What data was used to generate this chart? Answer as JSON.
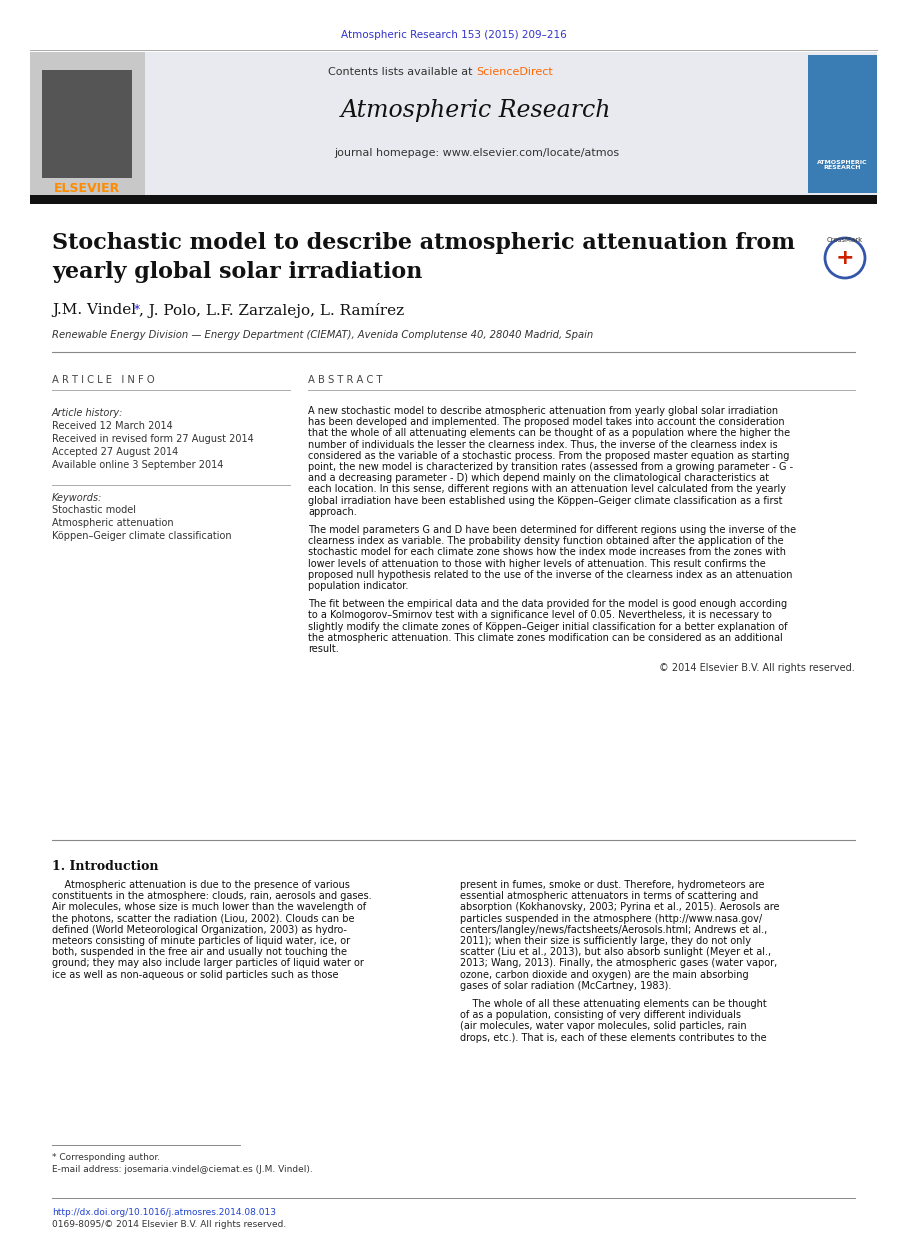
{
  "page_bg": "#ffffff",
  "top_citation": "Atmospheric Research 153 (2015) 209–216",
  "top_citation_color": "#3333cc",
  "contents_text": "Contents lists available at ",
  "sciencedirect_text": "ScienceDirect",
  "sciencedirect_color": "#ff6600",
  "journal_title": "Atmospheric Research",
  "journal_homepage": "journal homepage: www.elsevier.com/locate/atmos",
  "elsevier_color": "#ff8c00",
  "elsevier_text": "ELSEVIER",
  "article_title_line1": "Stochastic model to describe atmospheric attenuation from",
  "article_title_line2": "yearly global solar irradiation",
  "affiliation": "Renewable Energy Division — Energy Department (CIEMAT), Avenida Complutense 40, 28040 Madrid, Spain",
  "article_info_header": "A R T I C L E   I N F O",
  "abstract_header": "A B S T R A C T",
  "article_history_label": "Article history:",
  "received": "Received 12 March 2014",
  "received_revised": "Received in revised form 27 August 2014",
  "accepted": "Accepted 27 August 2014",
  "available_online": "Available online 3 September 2014",
  "keywords_label": "Keywords:",
  "keywords": [
    "Stochastic model",
    "Atmospheric attenuation",
    "Köppen–Geiger climate classification"
  ],
  "abstract_paragraph1": "A new stochastic model to describe atmospheric attenuation from yearly global solar irradiation\nhas been developed and implemented. The proposed model takes into account the consideration\nthat the whole of all attenuating elements can be thought of as a population where the higher the\nnumber of individuals the lesser the clearness index. Thus, the inverse of the clearness index is\nconsidered as the variable of a stochastic process. From the proposed master equation as starting\npoint, the new model is characterized by transition rates (assessed from a growing parameter - G -\nand a decreasing parameter - D) which depend mainly on the climatological characteristics at\neach location. In this sense, different regions with an attenuation level calculated from the yearly\nglobal irradiation have been established using the Köppen–Geiger climate classification as a first\napproach.",
  "abstract_paragraph2": "The model parameters G and D have been determined for different regions using the inverse of the\nclearness index as variable. The probability density function obtained after the application of the\nstochastic model for each climate zone shows how the index mode increases from the zones with\nlower levels of attenuation to those with higher levels of attenuation. This result confirms the\nproposed null hypothesis related to the use of the inverse of the clearness index as an attenuation\npopulation indicator.",
  "abstract_paragraph3": "The fit between the empirical data and the data provided for the model is good enough according\nto a Kolmogorov–Smirnov test with a significance level of 0.05. Nevertheless, it is necessary to\nslightly modify the climate zones of Köppen–Geiger initial classification for a better explanation of\nthe atmospheric attenuation. This climate zones modification can be considered as an additional\nresult.",
  "copyright": "© 2014 Elsevier B.V. All rights reserved.",
  "intro_header": "1. Introduction",
  "intro_p1_lines": [
    "    Atmospheric attenuation is due to the presence of various",
    "constituents in the atmosphere: clouds, rain, aerosols and gases.",
    "Air molecules, whose size is much lower than the wavelength of",
    "the photons, scatter the radiation (Liou, 2002). Clouds can be",
    "defined (World Meteorological Organization, 2003) as hydro-",
    "meteors consisting of minute particles of liquid water, ice, or",
    "both, suspended in the free air and usually not touching the",
    "ground; they may also include larger particles of liquid water or",
    "ice as well as non-aqueous or solid particles such as those"
  ],
  "intro_p2_lines": [
    "present in fumes, smoke or dust. Therefore, hydrometeors are",
    "essential atmospheric attenuators in terms of scattering and",
    "absorption (Kokhanovsky, 2003; Pyrina et al., 2015). Aerosols are",
    "particles suspended in the atmosphere (http://www.nasa.gov/",
    "centers/langley/news/factsheets/Aerosols.html; Andrews et al.,",
    "2011); when their size is sufficiently large, they do not only",
    "scatter (Liu et al., 2013), but also absorb sunlight (Meyer et al.,",
    "2013; Wang, 2013). Finally, the atmospheric gases (water vapor,",
    "ozone, carbon dioxide and oxygen) are the main absorbing",
    "gases of solar radiation (McCartney, 1983)."
  ],
  "intro_p3_lines": [
    "    The whole of all these attenuating elements can be thought",
    "of as a population, consisting of very different individuals",
    "(air molecules, water vapor molecules, solid particles, rain",
    "drops, etc.). That is, each of these elements contributes to the"
  ],
  "corresponding_note": "* Corresponding author.",
  "email_note": "E-mail address: josemaria.vindel@ciemat.es (J.M. Vindel).",
  "doi_text": "http://dx.doi.org/10.1016/j.atmosres.2014.08.013",
  "issn_text": "0169-8095/© 2014 Elsevier B.V. All rights reserved."
}
